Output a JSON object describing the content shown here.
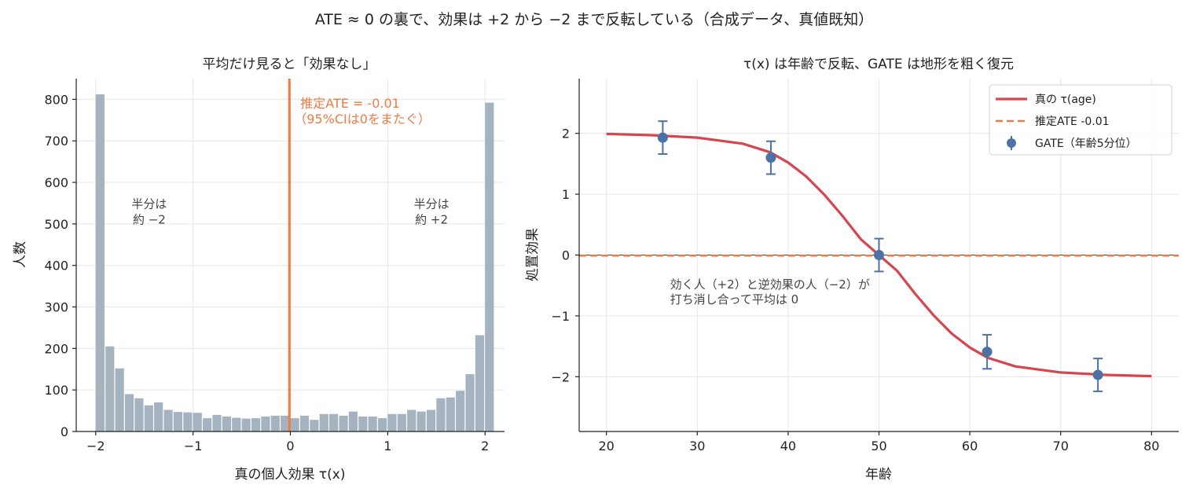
{
  "suptitle": "ATE ≈ 0 の裏で、効果は +2 から −2 まで反転している（合成データ、真値既知）",
  "chart_data": [
    {
      "type": "bar",
      "title": "平均だけ見ると「効果なし」",
      "xlabel": "真の個人効果 τ(x)",
      "ylabel": "人数",
      "xlim": [
        -2.2,
        2.2
      ],
      "ylim": [
        0,
        850
      ],
      "xticks": [
        -2,
        -1,
        0,
        1,
        2
      ],
      "xtick_labels": [
        "−2",
        "−1",
        "0",
        "1",
        "2"
      ],
      "yticks": [
        0,
        100,
        200,
        300,
        400,
        500,
        600,
        700,
        800
      ],
      "yticks_labels": [
        "0",
        "100",
        "200",
        "300",
        "400",
        "500",
        "600",
        "700",
        "800"
      ],
      "bin_start": -2.0,
      "bin_width": 0.1,
      "values": [
        812,
        205,
        152,
        90,
        80,
        63,
        70,
        52,
        47,
        46,
        45,
        32,
        40,
        36,
        33,
        31,
        32,
        36,
        38,
        38,
        32,
        38,
        28,
        42,
        42,
        38,
        48,
        36,
        36,
        32,
        42,
        42,
        52,
        48,
        52,
        80,
        82,
        98,
        138,
        232,
        792
      ],
      "bar_color": "#a5b3c1",
      "vline": {
        "x": -0.01,
        "color": "#ee7a45"
      },
      "vline_label": [
        "推定ATE = -0.01",
        "（95%CIは0をまたぐ）"
      ],
      "annotations": [
        {
          "x": -1.45,
          "y": 520,
          "lines": [
            "半分は",
            "約 −2"
          ]
        },
        {
          "x": 1.45,
          "y": 520,
          "lines": [
            "半分は",
            "約 +2"
          ]
        }
      ],
      "grid": true
    },
    {
      "type": "line",
      "title": "τ(x) は年齢で反転、GATE は地形を粗く復元",
      "xlabel": "年齢",
      "ylabel": "処置効果",
      "xlim": [
        17,
        83
      ],
      "ylim": [
        -2.9,
        2.9
      ],
      "xticks": [
        20,
        30,
        40,
        50,
        60,
        70,
        80
      ],
      "xtick_labels": [
        "20",
        "30",
        "40",
        "50",
        "60",
        "70",
        "80"
      ],
      "yticks": [
        -2,
        -1,
        0,
        1,
        2
      ],
      "yticks_labels": [
        "−2",
        "−1",
        "0",
        "1",
        "2"
      ],
      "series": [
        {
          "name": "真の τ(age)",
          "kind": "line",
          "color": "#d64651",
          "x": [
            20,
            25,
            30,
            35,
            38,
            40,
            42,
            44,
            46,
            48,
            50,
            52,
            54,
            56,
            58,
            60,
            62,
            65,
            70,
            75,
            80
          ],
          "y": [
            1.99,
            1.97,
            1.93,
            1.83,
            1.69,
            1.52,
            1.29,
            0.99,
            0.64,
            0.26,
            0.0,
            -0.26,
            -0.64,
            -0.99,
            -1.29,
            -1.52,
            -1.69,
            -1.83,
            -1.93,
            -1.97,
            -1.99
          ]
        },
        {
          "name": "推定ATE -0.01",
          "kind": "hline",
          "color": "#ee7a45",
          "y": -0.01
        },
        {
          "name": "GATE（年齢5分位）",
          "kind": "errorbar",
          "color": "#4c72a5",
          "x": [
            26.2,
            38.1,
            50.0,
            61.9,
            74.1
          ],
          "y": [
            1.93,
            1.6,
            0.0,
            -1.59,
            -1.97
          ],
          "err": [
            0.27,
            0.27,
            0.27,
            0.28,
            0.27
          ]
        }
      ],
      "annotation": {
        "x": 27.0,
        "y": -0.55,
        "lines": [
          "効く人（+2）と逆効果の人（−2）が",
          "打ち消し合って平均は 0"
        ]
      },
      "legend_position": "upper right",
      "grid": true
    }
  ]
}
